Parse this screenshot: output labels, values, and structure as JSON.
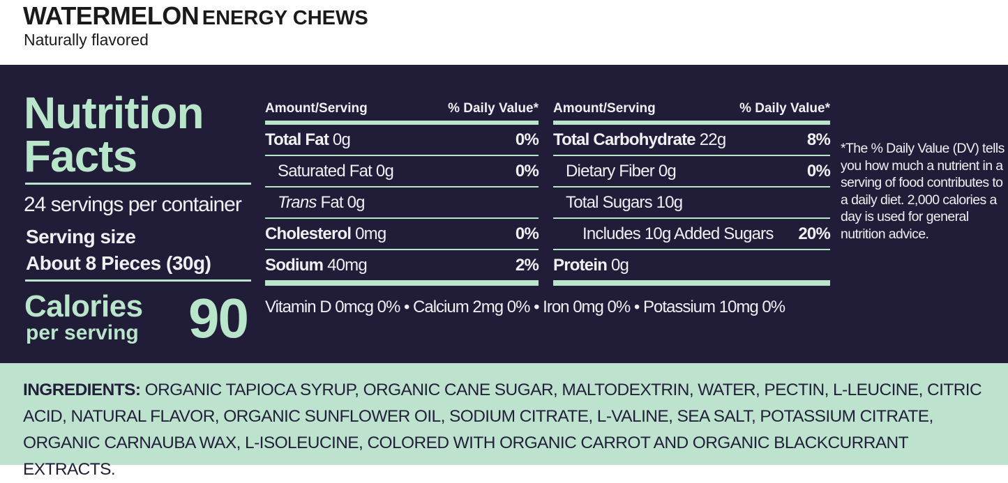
{
  "header": {
    "title_main": "WATERMELON",
    "title_rest": "ENERGY CHEWS",
    "subtitle": "Naturally flavored"
  },
  "nutrition": {
    "title_line1": "Nutrition",
    "title_line2": "Facts",
    "servings": "24 servings per container",
    "serving_size_label": "Serving size",
    "serving_size_value": "About 8 Pieces (30g)",
    "calories_label": "Calories",
    "calories_sub": "per serving",
    "calories_value": "90",
    "header_amount": "Amount/Serving",
    "header_dv": "% Daily Value*",
    "left_rows": [
      {
        "name": "Total Fat",
        "amount": "0g",
        "dv": "0%"
      },
      {
        "name": "Saturated Fat",
        "amount": "0g",
        "dv": "0%"
      },
      {
        "name": "Trans",
        "name_rest": "Fat",
        "amount": "0g",
        "dv": ""
      },
      {
        "name": "Cholesterol",
        "amount": "0mg",
        "dv": "0%"
      },
      {
        "name": "Sodium",
        "amount": "40mg",
        "dv": "2%"
      }
    ],
    "right_rows": [
      {
        "name": "Total Carbohydrate",
        "amount": "22g",
        "dv": "8%"
      },
      {
        "name": "Dietary Fiber 0g",
        "dv": "0%"
      },
      {
        "name": "Total Sugars 10g",
        "dv": ""
      },
      {
        "name": "Includes 10g Added Sugars",
        "dv": "20%"
      },
      {
        "name": "Protein",
        "amount": "0g",
        "dv": ""
      }
    ],
    "vitamins": "Vitamin D 0mcg 0% • Calcium 2mg 0% • Iron 0mg 0% • Potassium 10mg 0%",
    "footnote": "*The % Daily Value (DV) tells you how much a nutrient in a serving of food contributes to a daily diet. 2,000 calories a day is used for general nutrition advice."
  },
  "ingredients": {
    "label": "INGREDIENTS:",
    "text": "ORGANIC TAPIOCA SYRUP, ORGANIC CANE SUGAR, MALTODEXTRIN, WATER, PECTIN, L-LEUCINE, CITRIC ACID, NATURAL FLAVOR, ORGANIC SUNFLOWER OIL, SODIUM CITRATE, L-VALINE, SEA SALT, POTASSIUM CITRATE, ORGANIC CARNAUBA WAX, L-ISOLEUCINE, COLORED WITH ORGANIC CARROT AND ORGANIC BLACKCURRANT EXTRACTS."
  },
  "colors": {
    "panel": "#211c38",
    "mint": "#b9e5cb",
    "ingredients_bg": "#bde3cf"
  }
}
